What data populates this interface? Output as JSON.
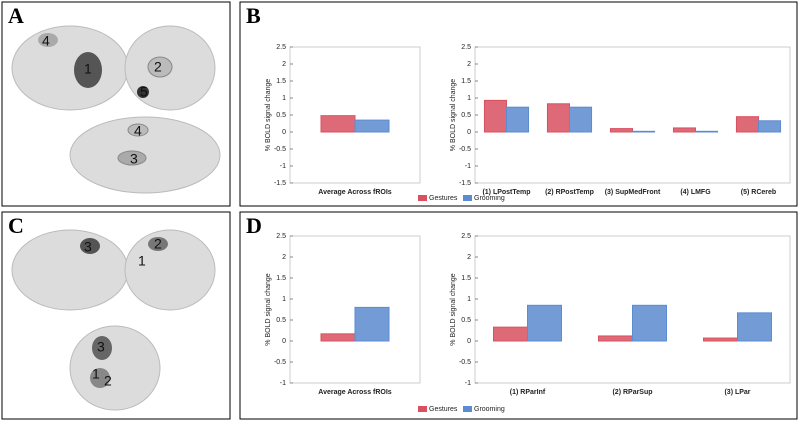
{
  "panels": [
    "A",
    "B",
    "C",
    "D"
  ],
  "brain_labels": {
    "A": [
      "4",
      "1",
      "2",
      "5",
      "4",
      "3"
    ],
    "C": [
      "3",
      "2",
      "1",
      "3",
      "1",
      "2"
    ]
  },
  "chart_data": [
    {
      "type": "bar",
      "ylabel": "% BOLD signal change",
      "categories": [
        "Average Across fROIs"
      ],
      "series": [
        {
          "color": "#d9505f",
          "values": [
            0.48
          ]
        },
        {
          "color": "#5b8bd0",
          "values": [
            0.35
          ]
        }
      ],
      "ylim": [
        -1.5,
        2.5
      ],
      "yticks": [
        -1.5,
        -1,
        -0.5,
        0,
        0.5,
        1,
        1.5,
        2,
        2.5
      ]
    },
    {
      "type": "bar",
      "ylabel": "% BOLD signal change",
      "categories": [
        "(1) LPostTemp",
        "(2) RPostTemp",
        "(3) SupMedFront",
        "(4) LMFG",
        "(5) RCereb"
      ],
      "series": [
        {
          "name": "Gestures",
          "color": "#d9505f",
          "values": [
            0.93,
            0.83,
            0.1,
            0.12,
            0.45
          ]
        },
        {
          "name": "Grooming",
          "color": "#5b8bd0",
          "values": [
            0.73,
            0.73,
            0.02,
            0.02,
            0.33
          ]
        }
      ],
      "ylim": [
        -1.5,
        2.5
      ],
      "yticks": [
        -1.5,
        -1,
        -0.5,
        0,
        0.5,
        1,
        1.5,
        2,
        2.5
      ]
    },
    {
      "type": "bar",
      "ylabel": "% BOLD signal change",
      "categories": [
        "Average Across fROIs"
      ],
      "series": [
        {
          "color": "#d9505f",
          "values": [
            0.17
          ]
        },
        {
          "color": "#5b8bd0",
          "values": [
            0.8
          ]
        }
      ],
      "ylim": [
        -1,
        2.5
      ],
      "yticks": [
        -1,
        -0.5,
        0,
        0.5,
        1,
        1.5,
        2,
        2.5
      ]
    },
    {
      "type": "bar",
      "ylabel": "% BOLD signal change",
      "categories": [
        "(1) RParInf",
        "(2) RParSup",
        "(3) LPar"
      ],
      "series": [
        {
          "name": "Gestures",
          "color": "#d9505f",
          "values": [
            0.33,
            0.12,
            0.07
          ]
        },
        {
          "name": "Grooming",
          "color": "#5b8bd0",
          "values": [
            0.85,
            0.85,
            0.67
          ]
        }
      ],
      "ylim": [
        -1,
        2.5
      ],
      "yticks": [
        -1,
        -0.5,
        0,
        0.5,
        1,
        1.5,
        2,
        2.5
      ]
    }
  ]
}
